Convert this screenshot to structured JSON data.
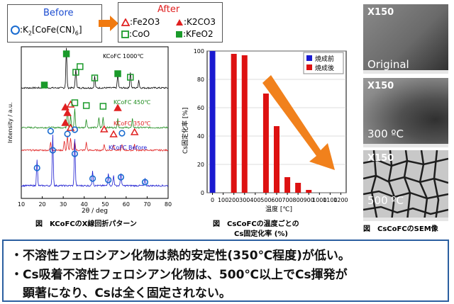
{
  "legend_before": {
    "title": "Before",
    "item": ":K",
    "item_full": "K2[CoFe(CN)6]"
  },
  "legend_after": {
    "title": "After",
    "items": [
      ":Fe2O3",
      ":K2CO3",
      ":CoO",
      ":KFeO2"
    ]
  },
  "chart_data": [
    {
      "type": "line",
      "title": "",
      "xlabel": "2θ / deg",
      "ylabel": "Intensity / a.u.",
      "xlim": [
        10,
        80
      ],
      "x_ticks": [
        "10",
        "20",
        "30",
        "40",
        "50",
        "60",
        "70",
        "80"
      ],
      "series": [
        {
          "name": "KCoFC 1000℃",
          "color": "#000000"
        },
        {
          "name": "KCoFC 450℃",
          "color": "#1a8a1a"
        },
        {
          "name": "KCoFC 350℃",
          "color": "#e02020"
        },
        {
          "name": "KCoFC Before",
          "color": "#1a1ad0"
        }
      ]
    },
    {
      "type": "bar",
      "title": "",
      "xlabel": "温度 [℃]",
      "ylabel": "Cs固定化率 [%]",
      "ylim": [
        0,
        100
      ],
      "x_ticks": [
        "0",
        "100",
        "200",
        "300",
        "400",
        "500",
        "600",
        "700",
        "800",
        "900",
        "1000",
        "1100",
        "1200"
      ],
      "y_ticks": [
        "0",
        "20",
        "40",
        "60",
        "80",
        "100"
      ],
      "legend": [
        "焼成前",
        "焼成後"
      ],
      "series": [
        {
          "name": "焼成前",
          "color": "#1a1ad0",
          "x": [
            0
          ],
          "values": [
            100
          ]
        },
        {
          "name": "焼成後",
          "color": "#dd1111",
          "x": [
            200,
            300,
            500,
            600,
            700,
            800,
            900
          ],
          "values": [
            98,
            97,
            70,
            47,
            11,
            7,
            2
          ]
        }
      ]
    }
  ],
  "captions": {
    "xrd": "図　KCoFCのX線回折パターン",
    "cs_line1": "図　CsCoFCの温度ごとの",
    "cs_line2": "Cs固定化率 (%)",
    "sem": "図　CsCoFCのSEM像"
  },
  "sem_images": [
    {
      "mag": "X150",
      "condition": "Original"
    },
    {
      "mag": "X150",
      "condition": "300 ºC"
    },
    {
      "mag": "X150",
      "condition": "500 ºC"
    }
  ],
  "conclusions": [
    "・不溶性フェロシアン化物は熱的安定性(350℃程度)が低い。",
    "・Cs吸着不溶性フェロシアン化物は、500℃以上でCs揮発が",
    "　顕著になり、Csは全く固定されない。"
  ],
  "colors": {
    "accent_orange": "#f07a10",
    "border_blue": "#2b5fa0",
    "sem_gray": "#6d6d6d"
  }
}
